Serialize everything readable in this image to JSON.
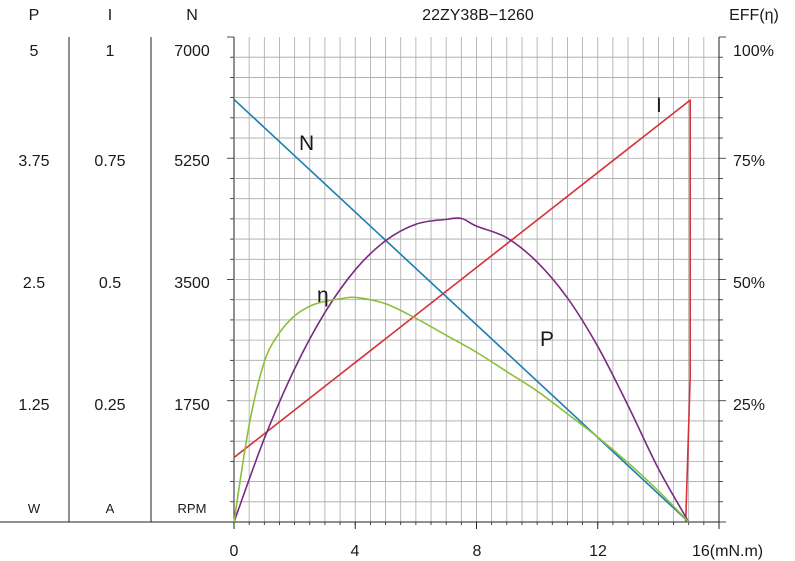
{
  "chart_data": {
    "type": "line",
    "title": "22ZY38B−1260",
    "x_axis": {
      "ticks": [
        "0",
        "4",
        "8",
        "12",
        "16(mN.m)"
      ],
      "range": [
        0,
        16
      ]
    },
    "left_axes": [
      {
        "header": "P",
        "unit": "W",
        "ticks": [
          "5",
          "3.75",
          "2.5",
          "1.25"
        ],
        "range": [
          0,
          5
        ]
      },
      {
        "header": "I",
        "unit": "A",
        "ticks": [
          "1",
          "0.75",
          "0.5",
          "0.25"
        ],
        "range": [
          0,
          1
        ]
      },
      {
        "header": "N",
        "unit": "RPM",
        "ticks": [
          "7000",
          "5250",
          "3500",
          "1750"
        ],
        "range": [
          0,
          7000
        ]
      }
    ],
    "right_axis": {
      "header": "EFF(η)",
      "ticks": [
        "100%",
        "75%",
        "50%",
        "25%"
      ],
      "range": [
        0,
        100
      ]
    },
    "grid": true,
    "series": [
      {
        "name": "N",
        "axis": "N",
        "color": "#1a7fb0",
        "points": [
          [
            0,
            6100
          ],
          [
            15,
            0
          ]
        ]
      },
      {
        "name": "I",
        "axis": "I",
        "color": "#d6303a",
        "points": [
          [
            0,
            0.133
          ],
          [
            15.05,
            0.87
          ],
          [
            15.05,
            0.3
          ],
          [
            14.9,
            0
          ]
        ]
      },
      {
        "name": "P",
        "axis": "P",
        "color": "#7a2a82",
        "points": [
          [
            0,
            0
          ],
          [
            1,
            0.86
          ],
          [
            2,
            1.58
          ],
          [
            3,
            2.16
          ],
          [
            4,
            2.6
          ],
          [
            5,
            2.9
          ],
          [
            6,
            3.07
          ],
          [
            7,
            3.12
          ],
          [
            7.5,
            3.13
          ],
          [
            8,
            3.05
          ],
          [
            9,
            2.93
          ],
          [
            10,
            2.68
          ],
          [
            11,
            2.31
          ],
          [
            12,
            1.81
          ],
          [
            13,
            1.2
          ],
          [
            14,
            0.55
          ],
          [
            15,
            0
          ]
        ]
      },
      {
        "name": "η",
        "axis": "EFF",
        "color": "#8cbf3a",
        "points": [
          [
            0,
            0
          ],
          [
            0.5,
            20
          ],
          [
            1,
            33
          ],
          [
            1.5,
            39
          ],
          [
            2,
            42.5
          ],
          [
            2.5,
            44.5
          ],
          [
            3,
            45.5
          ],
          [
            3.5,
            46
          ],
          [
            4,
            46.3
          ],
          [
            5,
            45
          ],
          [
            6,
            42
          ],
          [
            7,
            38.5
          ],
          [
            8,
            35
          ],
          [
            9,
            31
          ],
          [
            10,
            27
          ],
          [
            11,
            22.3
          ],
          [
            12,
            17.5
          ],
          [
            13,
            12.2
          ],
          [
            14,
            6.4
          ],
          [
            15,
            0
          ]
        ]
      }
    ]
  }
}
